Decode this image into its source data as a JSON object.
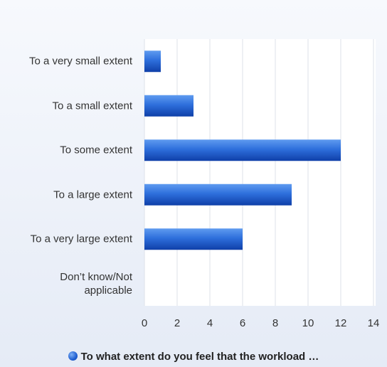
{
  "chart_data": {
    "type": "bar",
    "orientation": "horizontal",
    "categories": [
      "To a very small extent",
      "To a small extent",
      "To some extent",
      "To a large extent",
      "To a very large extent",
      "Don’t know/Not applicable"
    ],
    "series": [
      {
        "name": "To what extent do you feel that the workload …",
        "color": "#1f5fd1",
        "values": [
          1,
          3,
          12,
          9,
          6,
          0
        ]
      }
    ],
    "xlim": [
      0,
      14
    ],
    "xticks": [
      0,
      2,
      4,
      6,
      8,
      10,
      12,
      14
    ],
    "grid": true,
    "legend": "bottom"
  }
}
